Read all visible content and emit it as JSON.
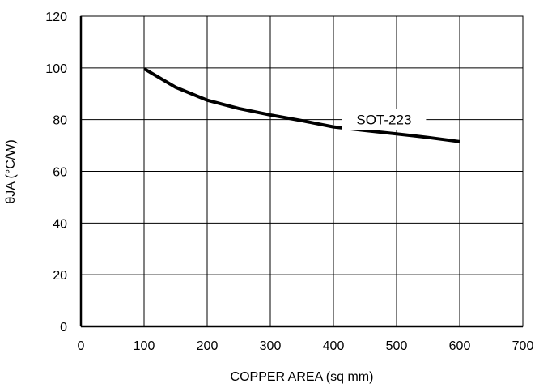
{
  "chart_data": {
    "type": "line",
    "xlabel": "COPPER AREA (sq mm)",
    "ylabel": "θJA (°C/W)",
    "xlim": [
      0,
      700
    ],
    "ylim": [
      0,
      120
    ],
    "xticks": [
      0,
      100,
      200,
      300,
      400,
      500,
      600,
      700
    ],
    "yticks": [
      0,
      20,
      40,
      60,
      80,
      100,
      120
    ],
    "grid": true,
    "series": [
      {
        "name": "SOT-223",
        "x": [
          100,
          150,
          200,
          250,
          300,
          350,
          400,
          450,
          500,
          550,
          600
        ],
        "y": [
          99.7,
          92.5,
          87.5,
          84.3,
          81.8,
          79.6,
          77.2,
          75.8,
          74.5,
          73.1,
          71.5
        ]
      }
    ]
  },
  "colors": {
    "line": "#000000",
    "grid": "#000000",
    "background": "#ffffff"
  }
}
